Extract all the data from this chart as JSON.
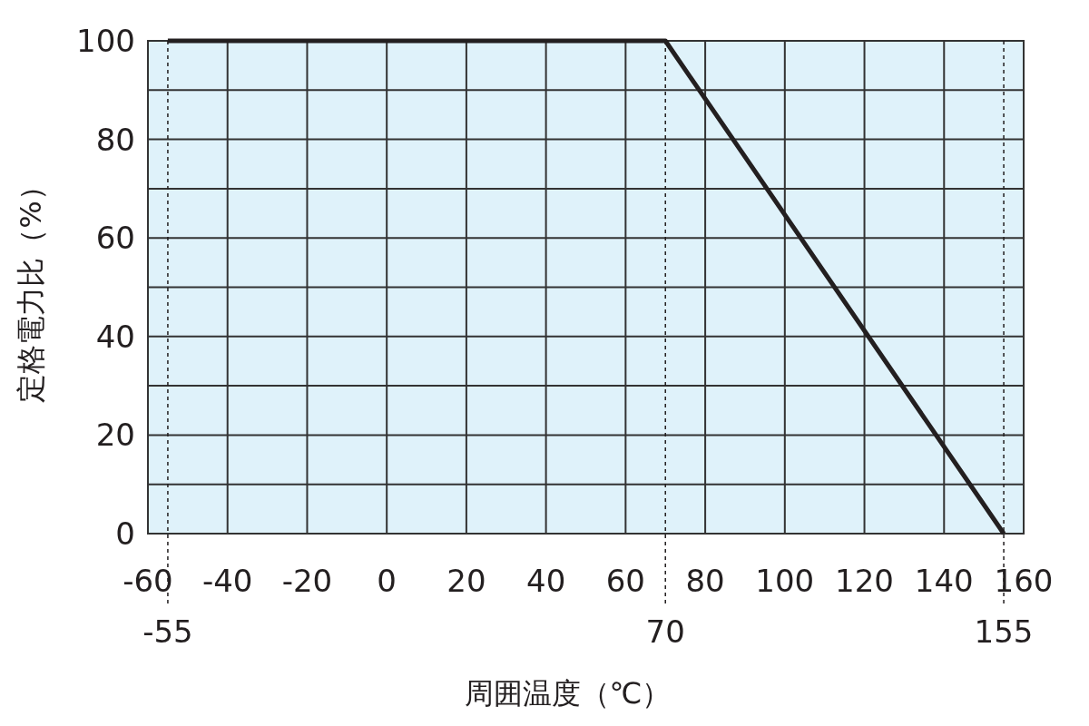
{
  "chart_data": {
    "type": "line",
    "xlabel": "周囲温度（℃）",
    "ylabel": "定格電力比（%）",
    "x": [
      -55,
      70,
      155
    ],
    "series": [
      {
        "color": "#231f20",
        "values": [
          100,
          100,
          0
        ]
      }
    ],
    "xlim": [
      -60,
      160
    ],
    "xticks": [
      -60,
      -40,
      -20,
      0,
      20,
      40,
      60,
      80,
      100,
      120,
      140,
      160
    ],
    "ylim": [
      0,
      100
    ],
    "yticks": [
      0,
      {
        "value": 10,
        "label": null
      },
      20,
      {
        "value": 30,
        "label": null
      },
      40,
      {
        "value": 50,
        "label": null
      },
      60,
      {
        "value": 70,
        "label": null
      },
      80,
      {
        "value": 90,
        "label": null
      },
      100
    ],
    "grid": true,
    "line_style": "solid",
    "marker": "none",
    "ref_lines": [
      {
        "axis": "x",
        "value": -55,
        "label": "-55",
        "line_style": "dotted",
        "color": "#231f20"
      },
      {
        "axis": "x",
        "value": 70,
        "label": "70",
        "line_style": "dotted",
        "color": "#231f20"
      },
      {
        "axis": "x",
        "value": 155,
        "label": "155",
        "line_style": "dotted",
        "color": "#231f20"
      }
    ]
  }
}
